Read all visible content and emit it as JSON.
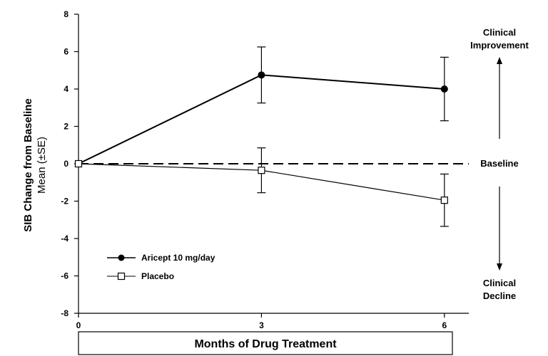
{
  "chart_data": {
    "type": "line",
    "x": [
      0,
      3,
      6
    ],
    "xticks": [
      "0",
      "3",
      "6"
    ],
    "xlim": [
      0,
      6.4
    ],
    "ylim": [
      -8,
      8
    ],
    "yticks": [
      "-8",
      "-6",
      "-4",
      "-2",
      "0",
      "2",
      "4",
      "6",
      "8"
    ],
    "xlabel": "Months of Drug Treatment",
    "ylabel_line1": "SIB Change from Baseline",
    "ylabel_line2": "Mean (±SE)",
    "series": [
      {
        "name": "Aricept 10 mg/day",
        "marker": "filled-circle",
        "values": [
          0,
          4.75,
          4.0
        ],
        "error": [
          0,
          1.5,
          1.7
        ]
      },
      {
        "name": "Placebo",
        "marker": "open-square",
        "values": [
          0,
          -0.35,
          -1.95
        ],
        "error": [
          0,
          1.2,
          1.4
        ]
      }
    ],
    "baseline_value": 0,
    "annotations": {
      "improvement_line1": "Clinical",
      "improvement_line2": "Improvement",
      "baseline": "Baseline",
      "decline_line1": "Clinical",
      "decline_line2": "Decline"
    },
    "legend_position": "bottom-left",
    "grid": false
  }
}
